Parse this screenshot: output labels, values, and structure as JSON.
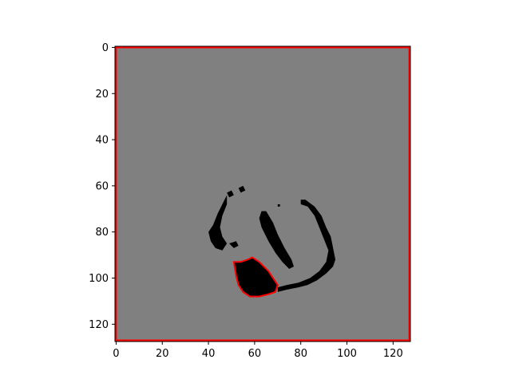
{
  "chart_data": {
    "type": "heatmap",
    "title": "",
    "xlabel": "",
    "ylabel": "",
    "xlim": [
      0,
      128
    ],
    "ylim": [
      128,
      0
    ],
    "y_axis_inverted": true,
    "x_ticks": [
      0,
      20,
      40,
      60,
      80,
      100,
      120
    ],
    "y_ticks": [
      0,
      20,
      40,
      60,
      80,
      100,
      120
    ],
    "grid": false,
    "legend": "none",
    "colors": {
      "background": "#808080",
      "foreground": "#000000",
      "contour": "#ff0000",
      "frame": "#000000"
    },
    "image_size": [
      128,
      128
    ],
    "dark_regions": [
      {
        "name": "left-arc",
        "points": [
          [
            45,
            62
          ],
          [
            48,
            64
          ],
          [
            46,
            68
          ],
          [
            44,
            72
          ],
          [
            42,
            77
          ],
          [
            40,
            80
          ],
          [
            41,
            84
          ],
          [
            43,
            87
          ],
          [
            46,
            88
          ],
          [
            48,
            85
          ],
          [
            46,
            82
          ],
          [
            45,
            78
          ],
          [
            46,
            73
          ],
          [
            48,
            68
          ],
          [
            48,
            64
          ]
        ]
      },
      {
        "name": "top-blob",
        "points": [
          [
            53,
            61
          ],
          [
            55,
            60
          ],
          [
            56,
            62
          ],
          [
            54,
            63
          ]
        ]
      },
      {
        "name": "top-dot",
        "points": [
          [
            48,
            63
          ],
          [
            50,
            62
          ],
          [
            51,
            64
          ],
          [
            49,
            65
          ]
        ]
      },
      {
        "name": "small-blob",
        "points": [
          [
            49,
            85
          ],
          [
            52,
            84
          ],
          [
            53,
            86
          ],
          [
            51,
            87
          ]
        ]
      },
      {
        "name": "inner-crescent",
        "points": [
          [
            63,
            71
          ],
          [
            65,
            71
          ],
          [
            68,
            76
          ],
          [
            70,
            81
          ],
          [
            73,
            87
          ],
          [
            76,
            92
          ],
          [
            77,
            95
          ],
          [
            75,
            96
          ],
          [
            72,
            93
          ],
          [
            69,
            89
          ],
          [
            66,
            84
          ],
          [
            63,
            78
          ],
          [
            62,
            74
          ]
        ]
      },
      {
        "name": "right-arc",
        "points": [
          [
            80,
            66
          ],
          [
            82,
            66
          ],
          [
            86,
            69
          ],
          [
            89,
            73
          ],
          [
            91,
            78
          ],
          [
            93,
            82
          ],
          [
            94,
            87
          ],
          [
            95,
            92
          ],
          [
            94,
            95
          ],
          [
            91,
            98
          ],
          [
            87,
            101
          ],
          [
            83,
            103
          ],
          [
            79,
            104
          ],
          [
            74,
            105
          ],
          [
            70,
            106
          ],
          [
            70,
            104
          ],
          [
            74,
            103
          ],
          [
            79,
            102
          ],
          [
            84,
            100
          ],
          [
            88,
            97
          ],
          [
            91,
            93
          ],
          [
            92,
            88
          ],
          [
            90,
            83
          ],
          [
            88,
            78
          ],
          [
            86,
            73
          ],
          [
            83,
            69
          ],
          [
            80,
            68
          ]
        ]
      },
      {
        "name": "small-dot",
        "points": [
          [
            70,
            68
          ],
          [
            71,
            68
          ],
          [
            71,
            69
          ],
          [
            70,
            69
          ]
        ]
      },
      {
        "name": "main-blob",
        "points": [
          [
            51,
            93
          ],
          [
            54,
            93
          ],
          [
            57,
            92
          ],
          [
            59,
            91
          ],
          [
            62,
            93
          ],
          [
            64,
            95
          ],
          [
            66,
            97
          ],
          [
            68,
            100
          ],
          [
            70,
            103
          ],
          [
            69,
            106
          ],
          [
            66,
            107
          ],
          [
            62,
            108
          ],
          [
            58,
            108
          ],
          [
            55,
            106
          ],
          [
            53,
            103
          ],
          [
            52,
            99
          ]
        ]
      }
    ],
    "contours": [
      {
        "name": "image-border",
        "points": [
          [
            0,
            0
          ],
          [
            127,
            0
          ],
          [
            127,
            127
          ],
          [
            0,
            127
          ]
        ]
      },
      {
        "name": "main-blob-contour",
        "points": [
          [
            51,
            93
          ],
          [
            54,
            93
          ],
          [
            57,
            92
          ],
          [
            59,
            91
          ],
          [
            62,
            93
          ],
          [
            64,
            95
          ],
          [
            66,
            97
          ],
          [
            68,
            100
          ],
          [
            70,
            103
          ],
          [
            69,
            106
          ],
          [
            66,
            107
          ],
          [
            62,
            108
          ],
          [
            58,
            108
          ],
          [
            55,
            106
          ],
          [
            53,
            103
          ],
          [
            52,
            99
          ]
        ]
      }
    ]
  }
}
